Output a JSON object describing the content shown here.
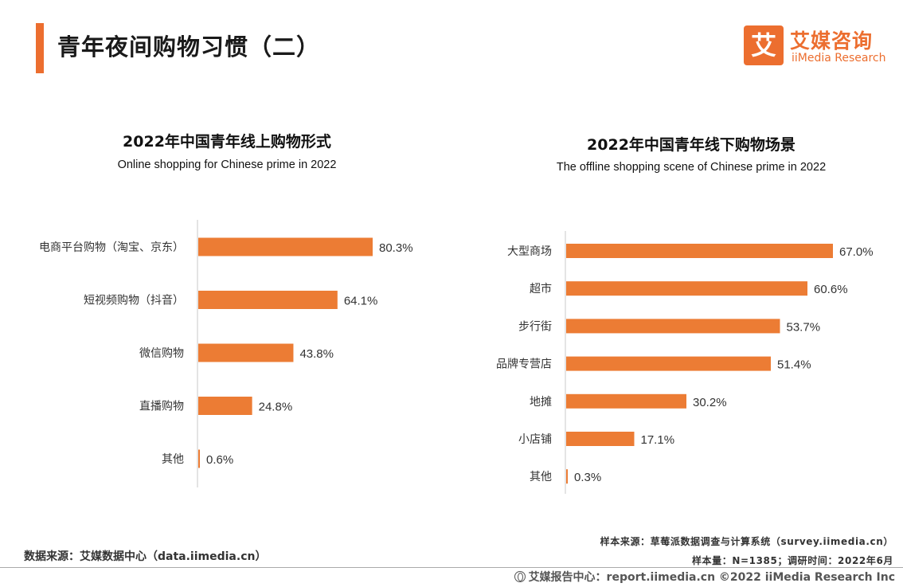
{
  "page": {
    "title": "青年夜间购物习惯（二）",
    "accent_color": "#ec6e2f"
  },
  "logo": {
    "mark": "艾",
    "name_cn": "艾媒咨询",
    "name_en": "iiMedia Research"
  },
  "chart_data": [
    {
      "type": "bar",
      "orientation": "horizontal",
      "title": "2022年中国青年线上购物形式",
      "subtitle": "Online shopping for Chinese prime in 2022",
      "categories": [
        "电商平台购物（淘宝、京东）",
        "短视频购物（抖音）",
        "微信购物",
        "直播购物",
        "其他"
      ],
      "values": [
        80.3,
        64.1,
        43.8,
        24.8,
        0.6
      ],
      "value_labels": [
        "80.3%",
        "64.1%",
        "43.8%",
        "24.8%",
        "0.6%"
      ],
      "unit": "%",
      "xlim": [
        0,
        80.3
      ],
      "bar_color": "#ec7c34",
      "grid": false,
      "legend": "none"
    },
    {
      "type": "bar",
      "orientation": "horizontal",
      "title": "2022年中国青年线下购物场景",
      "subtitle": "The offline shopping scene of Chinese prime in 2022",
      "categories": [
        "大型商场",
        "超市",
        "步行街",
        "品牌专营店",
        "地摊",
        "小店铺",
        "其他"
      ],
      "values": [
        67.0,
        60.6,
        53.7,
        51.4,
        30.2,
        17.1,
        0.3
      ],
      "value_labels": [
        "67.0%",
        "60.6%",
        "53.7%",
        "51.4%",
        "30.2%",
        "17.1%",
        "0.3%"
      ],
      "unit": "%",
      "xlim": [
        0,
        67.0
      ],
      "bar_color": "#ec7c34",
      "grid": false,
      "legend": "none"
    }
  ],
  "footer": {
    "data_source": "数据来源：艾媒数据中心（data.iimedia.cn）",
    "sample_source": "样本来源：草莓派数据调查与计算系统（survey.iimedia.cn）",
    "sample_size": "样本量：N=1385；调研时间：2022年6月",
    "copyright": "艾媒报告中心：report.iimedia.cn  ©2022  iiMedia Research  Inc"
  }
}
